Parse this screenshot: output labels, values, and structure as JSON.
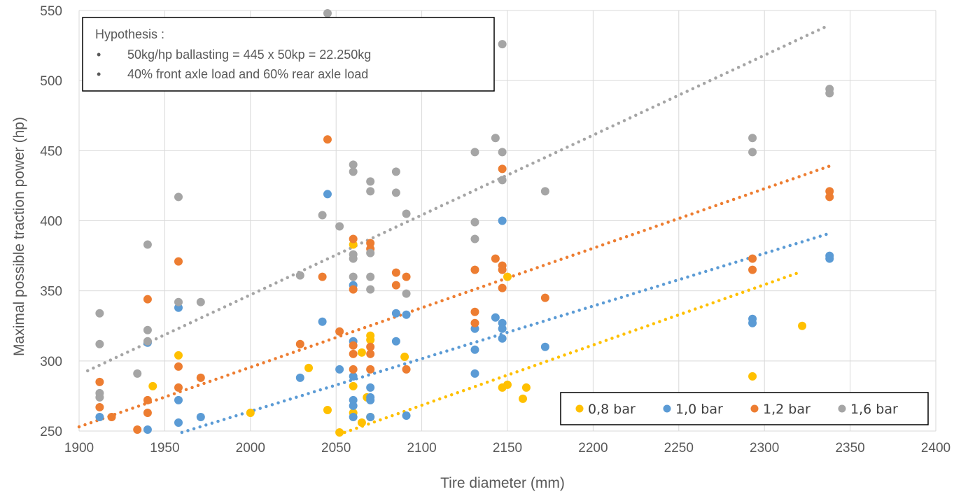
{
  "chart_data": {
    "type": "scatter",
    "xlabel": "Tire diameter (mm)",
    "ylabel": "Maximal possible traction power  (hp)",
    "xlim": [
      1900,
      2400
    ],
    "ylim": [
      250,
      550
    ],
    "x_ticks": [
      "1900",
      "1950",
      "2000",
      "2050",
      "2100",
      "2150",
      "2200",
      "2250",
      "2300",
      "2350",
      "2400"
    ],
    "y_ticks": [
      "250",
      "300",
      "350",
      "400",
      "450",
      "500",
      "550"
    ],
    "grid": true,
    "annotation": {
      "title": "Hypothesis :",
      "bullets": [
        "50kg/hp ballasting = 445 x 50kp = 22.250kg",
        "40% front axle load and 60% rear axle load"
      ]
    },
    "legend_position": "bottom-right",
    "series": [
      {
        "name": "0,8 bar",
        "color": "#FFC000",
        "points": [
          [
            1943,
            282
          ],
          [
            1958,
            304
          ],
          [
            2000,
            263
          ],
          [
            2034,
            295
          ],
          [
            2045,
            265
          ],
          [
            2052,
            249
          ],
          [
            2060,
            383
          ],
          [
            2060,
            282
          ],
          [
            2060,
            263
          ],
          [
            2065,
            256
          ],
          [
            2065,
            306
          ],
          [
            2068,
            274
          ],
          [
            2070,
            318
          ],
          [
            2070,
            315
          ],
          [
            2070,
            260
          ],
          [
            2090,
            303
          ],
          [
            2147,
            281
          ],
          [
            2150,
            283
          ],
          [
            2150,
            360
          ],
          [
            2159,
            273
          ],
          [
            2161,
            281
          ],
          [
            2293,
            289
          ],
          [
            2322,
            325
          ]
        ],
        "trend": [
          [
            2055,
            249
          ],
          [
            2320,
            363
          ]
        ]
      },
      {
        "name": "1,0 bar",
        "color": "#5B9BD5",
        "points": [
          [
            1912,
            260
          ],
          [
            1940,
            251
          ],
          [
            1940,
            313
          ],
          [
            1958,
            338
          ],
          [
            1958,
            256
          ],
          [
            1958,
            272
          ],
          [
            1971,
            260
          ],
          [
            2029,
            288
          ],
          [
            2042,
            328
          ],
          [
            2045,
            419
          ],
          [
            2052,
            294
          ],
          [
            2060,
            354
          ],
          [
            2060,
            314
          ],
          [
            2060,
            289
          ],
          [
            2060,
            272
          ],
          [
            2060,
            268
          ],
          [
            2060,
            260
          ],
          [
            2070,
            281
          ],
          [
            2070,
            274
          ],
          [
            2070,
            272
          ],
          [
            2070,
            260
          ],
          [
            2085,
            334
          ],
          [
            2085,
            314
          ],
          [
            2091,
            333
          ],
          [
            2091,
            261
          ],
          [
            2131,
            323
          ],
          [
            2131,
            308
          ],
          [
            2131,
            291
          ],
          [
            2143,
            331
          ],
          [
            2147,
            327
          ],
          [
            2147,
            323
          ],
          [
            2147,
            316
          ],
          [
            2147,
            400
          ],
          [
            2172,
            310
          ],
          [
            2293,
            330
          ],
          [
            2293,
            327
          ],
          [
            2338,
            375
          ],
          [
            2338,
            373
          ]
        ],
        "trend": [
          [
            1960,
            249
          ],
          [
            2338,
            391
          ]
        ]
      },
      {
        "name": "1,2 bar",
        "color": "#ED7D31",
        "points": [
          [
            1912,
            285
          ],
          [
            1912,
            267
          ],
          [
            1919,
            260
          ],
          [
            1934,
            251
          ],
          [
            1940,
            344
          ],
          [
            1940,
            272
          ],
          [
            1940,
            263
          ],
          [
            1958,
            371
          ],
          [
            1958,
            296
          ],
          [
            1958,
            281
          ],
          [
            1971,
            288
          ],
          [
            2029,
            312
          ],
          [
            2042,
            360
          ],
          [
            2045,
            458
          ],
          [
            2052,
            321
          ],
          [
            2060,
            387
          ],
          [
            2060,
            351
          ],
          [
            2060,
            311
          ],
          [
            2060,
            305
          ],
          [
            2060,
            294
          ],
          [
            2070,
            384
          ],
          [
            2070,
            380
          ],
          [
            2070,
            310
          ],
          [
            2070,
            305
          ],
          [
            2070,
            294
          ],
          [
            2085,
            363
          ],
          [
            2085,
            354
          ],
          [
            2091,
            360
          ],
          [
            2091,
            294
          ],
          [
            2131,
            365
          ],
          [
            2131,
            335
          ],
          [
            2131,
            327
          ],
          [
            2143,
            373
          ],
          [
            2147,
            437
          ],
          [
            2147,
            368
          ],
          [
            2147,
            365
          ],
          [
            2147,
            352
          ],
          [
            2172,
            345
          ],
          [
            2293,
            373
          ],
          [
            2293,
            365
          ],
          [
            2338,
            421
          ],
          [
            2338,
            417
          ]
        ],
        "trend": [
          [
            1900,
            253
          ],
          [
            2338,
            439
          ]
        ]
      },
      {
        "name": "1,6 bar",
        "color": "#A5A5A5",
        "points": [
          [
            1912,
            334
          ],
          [
            1912,
            312
          ],
          [
            1912,
            277
          ],
          [
            1912,
            274
          ],
          [
            1934,
            291
          ],
          [
            1940,
            383
          ],
          [
            1940,
            322
          ],
          [
            1940,
            314
          ],
          [
            1958,
            417
          ],
          [
            1958,
            342
          ],
          [
            1971,
            342
          ],
          [
            2029,
            361
          ],
          [
            2042,
            404
          ],
          [
            2045,
            548
          ],
          [
            2052,
            396
          ],
          [
            2060,
            440
          ],
          [
            2060,
            435
          ],
          [
            2060,
            376
          ],
          [
            2060,
            373
          ],
          [
            2060,
            360
          ],
          [
            2070,
            428
          ],
          [
            2070,
            421
          ],
          [
            2070,
            377
          ],
          [
            2070,
            360
          ],
          [
            2070,
            351
          ],
          [
            2085,
            435
          ],
          [
            2085,
            420
          ],
          [
            2091,
            405
          ],
          [
            2091,
            348
          ],
          [
            2131,
            449
          ],
          [
            2131,
            399
          ],
          [
            2131,
            387
          ],
          [
            2143,
            459
          ],
          [
            2147,
            526
          ],
          [
            2147,
            449
          ],
          [
            2147,
            429
          ],
          [
            2172,
            421
          ],
          [
            2293,
            459
          ],
          [
            2293,
            449
          ],
          [
            2338,
            494
          ],
          [
            2338,
            491
          ]
        ],
        "trend": [
          [
            1905,
            293
          ],
          [
            2335,
            538
          ]
        ]
      }
    ]
  }
}
